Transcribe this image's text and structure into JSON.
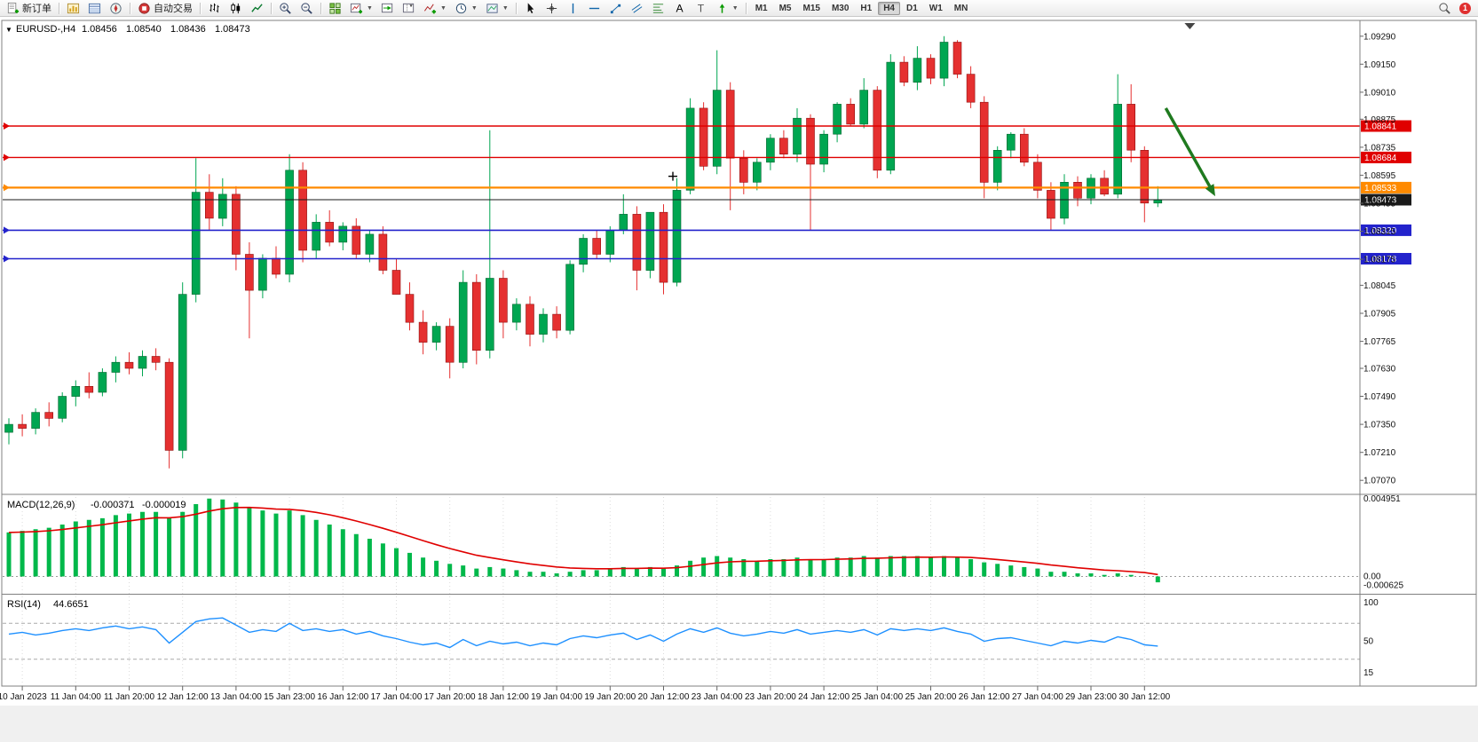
{
  "colors": {
    "up": "#00a651",
    "up_border": "#00662e",
    "down": "#e53030",
    "down_border": "#8f1010",
    "macd_hist": "#00b84a",
    "macd_signal": "#e00000",
    "rsi_line": "#1e90ff",
    "line_red": "#e00000",
    "line_orange": "#ff8a00",
    "line_blue": "#2323cc",
    "line_black": "#1a1a1a",
    "arrow": "#1f7a1f",
    "axis_text": "#111111",
    "frame": "#808080"
  },
  "toolbar": {
    "groups": [
      {
        "items": [
          {
            "name": "new-order-button",
            "icon": "new-order-icon",
            "label": "新订单"
          }
        ]
      },
      {
        "items": [
          {
            "name": "market-watch-button",
            "icon": "market-watch-icon"
          },
          {
            "name": "data-window-button",
            "icon": "data-window-icon"
          },
          {
            "name": "navigator-button",
            "icon": "navigator-icon"
          }
        ]
      },
      {
        "items": [
          {
            "name": "autotrade-button",
            "icon": "autotrade-icon",
            "label": "自动交易"
          }
        ]
      },
      {
        "items": [
          {
            "name": "bars-chart-button",
            "icon": "bars-chart-icon"
          },
          {
            "name": "candles-chart-button",
            "icon": "candles-chart-icon"
          },
          {
            "name": "line-chart-button",
            "icon": "line-chart-icon"
          }
        ]
      },
      {
        "items": [
          {
            "name": "zoom-in-button",
            "icon": "zoom-in-icon"
          },
          {
            "name": "zoom-out-button",
            "icon": "zoom-out-icon"
          }
        ]
      },
      {
        "items": [
          {
            "name": "tile-windows-button",
            "icon": "tile-windows-icon"
          },
          {
            "name": "new-chart-button",
            "icon": "new-chart-icon",
            "caret": true
          },
          {
            "name": "auto-scroll-button",
            "icon": "auto-scroll-icon"
          },
          {
            "name": "chart-shift-button",
            "icon": "chart-shift-icon"
          },
          {
            "name": "indicators-button",
            "icon": "indicators-icon",
            "caret": true
          },
          {
            "name": "periods-button",
            "icon": "periods-icon",
            "caret": true
          },
          {
            "name": "templates-button",
            "icon": "templates-icon",
            "caret": true
          }
        ]
      },
      {
        "items": [
          {
            "name": "cursor-button",
            "icon": "cursor-icon"
          },
          {
            "name": "crosshair-button",
            "icon": "crosshair-icon"
          },
          {
            "name": "vertical-line-button",
            "icon": "vertical-line-icon"
          },
          {
            "name": "horizontal-line-button",
            "icon": "horizontal-line-icon"
          },
          {
            "name": "trendline-button",
            "icon": "trendline-icon"
          },
          {
            "name": "channel-button",
            "icon": "channel-icon"
          },
          {
            "name": "fibonacci-button",
            "icon": "fibonacci-icon"
          },
          {
            "name": "text-button",
            "icon": "text-icon"
          },
          {
            "name": "text-label-button",
            "icon": "text-label-icon"
          },
          {
            "name": "arrows-button",
            "icon": "arrows-icon",
            "caret": true
          }
        ]
      },
      {
        "items": [
          {
            "name": "timeframe-m1",
            "label": "M1"
          },
          {
            "name": "timeframe-m5",
            "label": "M5"
          },
          {
            "name": "timeframe-m15",
            "label": "M15"
          },
          {
            "name": "timeframe-m30",
            "label": "M30"
          },
          {
            "name": "timeframe-h1",
            "label": "H1"
          },
          {
            "name": "timeframe-h4",
            "label": "H4",
            "active": true
          },
          {
            "name": "timeframe-d1",
            "label": "D1"
          },
          {
            "name": "timeframe-w1",
            "label": "W1"
          },
          {
            "name": "timeframe-mn",
            "label": "MN"
          }
        ]
      }
    ],
    "right_badge": "1"
  },
  "chart": {
    "symbol_period": "EURUSD-,H4",
    "ohlc": [
      "1.08456",
      "1.08540",
      "1.08436",
      "1.08473"
    ]
  },
  "chart_data": {
    "type": "candlestick",
    "symbol": "EURUSD",
    "timeframe": "H4",
    "x_labels": [
      "10 Jan 2023",
      "11 Jan 04:00",
      "11 Jan 20:00",
      "12 Jan 12:00",
      "13 Jan 04:00",
      "15 Jan 23:00",
      "16 Jan 12:00",
      "17 Jan 04:00",
      "17 Jan 20:00",
      "18 Jan 12:00",
      "19 Jan 04:00",
      "19 Jan 20:00",
      "20 Jan 12:00",
      "23 Jan 04:00",
      "23 Jan 20:00",
      "24 Jan 12:00",
      "25 Jan 04:00",
      "25 Jan 20:00",
      "26 Jan 12:00",
      "27 Jan 04:00",
      "29 Jan 23:00",
      "30 Jan 12:00"
    ],
    "label_start_index": 1,
    "label_every": 4,
    "price_axis": {
      "min": 1.07,
      "max": 1.0936,
      "tick_labels": [
        "1.09290",
        "1.09150",
        "1.09010",
        "1.08875",
        "1.08735",
        "1.08595",
        "1.08455",
        "1.08315",
        "1.08175",
        "1.08045",
        "1.07905",
        "1.07765",
        "1.07630",
        "1.07490",
        "1.07350",
        "1.07210",
        "1.07070"
      ]
    },
    "candles": [
      [
        1.0731,
        1.0738,
        1.0725,
        1.0735
      ],
      [
        1.0735,
        1.074,
        1.0729,
        1.0733
      ],
      [
        1.0733,
        1.0743,
        1.073,
        1.0741
      ],
      [
        1.0741,
        1.0746,
        1.0734,
        1.0738
      ],
      [
        1.0738,
        1.0751,
        1.0736,
        1.0749
      ],
      [
        1.0749,
        1.0757,
        1.0744,
        1.0754
      ],
      [
        1.0754,
        1.0761,
        1.0748,
        1.0751
      ],
      [
        1.0751,
        1.0763,
        1.0749,
        1.0761
      ],
      [
        1.0761,
        1.0769,
        1.0756,
        1.0766
      ],
      [
        1.0766,
        1.0771,
        1.076,
        1.0763
      ],
      [
        1.0763,
        1.0772,
        1.0759,
        1.0769
      ],
      [
        1.0769,
        1.0773,
        1.0762,
        1.0766
      ],
      [
        1.0766,
        1.0768,
        1.0713,
        1.0722
      ],
      [
        1.0722,
        1.0806,
        1.0718,
        1.08
      ],
      [
        1.08,
        1.0868,
        1.0796,
        1.0851
      ],
      [
        1.0851,
        1.086,
        1.0832,
        1.0838
      ],
      [
        1.0838,
        1.0858,
        1.0834,
        1.085
      ],
      [
        1.085,
        1.0854,
        1.0812,
        1.082
      ],
      [
        1.082,
        1.0826,
        1.0778,
        1.0802
      ],
      [
        1.0802,
        1.082,
        1.0798,
        1.0818
      ],
      [
        1.0818,
        1.0824,
        1.0808,
        1.081
      ],
      [
        1.081,
        1.087,
        1.0806,
        1.0862
      ],
      [
        1.0862,
        1.0866,
        1.0816,
        1.0822
      ],
      [
        1.0822,
        1.084,
        1.0818,
        1.0836
      ],
      [
        1.0836,
        1.0842,
        1.0824,
        1.0826
      ],
      [
        1.0826,
        1.0836,
        1.0822,
        1.0834
      ],
      [
        1.0834,
        1.0838,
        1.0818,
        1.082
      ],
      [
        1.082,
        1.0832,
        1.0816,
        1.083
      ],
      [
        1.083,
        1.0834,
        1.081,
        1.0812
      ],
      [
        1.0812,
        1.0818,
        1.08,
        1.08
      ],
      [
        1.08,
        1.0806,
        1.0782,
        1.0786
      ],
      [
        1.0786,
        1.0792,
        1.077,
        1.0776
      ],
      [
        1.0776,
        1.0786,
        1.0772,
        1.0784
      ],
      [
        1.0784,
        1.0788,
        1.0758,
        1.0766
      ],
      [
        1.0766,
        1.0812,
        1.0763,
        1.0806
      ],
      [
        1.0806,
        1.081,
        1.0765,
        1.0772
      ],
      [
        1.0772,
        1.0882,
        1.0768,
        1.0808
      ],
      [
        1.0808,
        1.0812,
        1.0778,
        1.0786
      ],
      [
        1.0786,
        1.0798,
        1.0782,
        1.0795
      ],
      [
        1.0795,
        1.0799,
        1.0774,
        1.078
      ],
      [
        1.078,
        1.0793,
        1.0776,
        1.079
      ],
      [
        1.079,
        1.0794,
        1.0778,
        1.0782
      ],
      [
        1.0782,
        1.0817,
        1.078,
        1.0815
      ],
      [
        1.0815,
        1.083,
        1.0811,
        1.0828
      ],
      [
        1.0828,
        1.0832,
        1.0818,
        1.082
      ],
      [
        1.082,
        1.0834,
        1.0816,
        1.0832
      ],
      [
        1.0832,
        1.085,
        1.083,
        1.084
      ],
      [
        1.084,
        1.0844,
        1.0802,
        1.0812
      ],
      [
        1.0812,
        1.0841,
        1.0808,
        1.0841
      ],
      [
        1.0841,
        1.0845,
        1.08,
        1.0806
      ],
      [
        1.0806,
        1.0858,
        1.0804,
        1.0852
      ],
      [
        1.0852,
        1.0898,
        1.085,
        1.0893
      ],
      [
        1.0893,
        1.0896,
        1.0862,
        1.0864
      ],
      [
        1.0864,
        1.0922,
        1.086,
        1.0902
      ],
      [
        1.0902,
        1.0906,
        1.0842,
        1.0868
      ],
      [
        1.0868,
        1.0872,
        1.085,
        1.0856
      ],
      [
        1.0856,
        1.0868,
        1.0852,
        1.0866
      ],
      [
        1.0866,
        1.088,
        1.0862,
        1.0878
      ],
      [
        1.0878,
        1.0882,
        1.0868,
        1.087
      ],
      [
        1.087,
        1.0893,
        1.0866,
        1.0888
      ],
      [
        1.0888,
        1.089,
        1.0832,
        1.0865
      ],
      [
        1.0865,
        1.0882,
        1.0861,
        1.088
      ],
      [
        1.088,
        1.0896,
        1.0876,
        1.0895
      ],
      [
        1.0895,
        1.0898,
        1.0884,
        1.0885
      ],
      [
        1.0885,
        1.0908,
        1.0883,
        1.0902
      ],
      [
        1.0902,
        1.0904,
        1.0858,
        1.0862
      ],
      [
        1.0862,
        1.092,
        1.086,
        1.0916
      ],
      [
        1.0916,
        1.0919,
        1.0904,
        1.0906
      ],
      [
        1.0906,
        1.0924,
        1.0902,
        1.0918
      ],
      [
        1.0918,
        1.092,
        1.0905,
        1.0908
      ],
      [
        1.0908,
        1.0929,
        1.0904,
        1.0926
      ],
      [
        1.0926,
        1.0927,
        1.0908,
        1.091
      ],
      [
        1.091,
        1.0914,
        1.0893,
        1.0896
      ],
      [
        1.0896,
        1.0899,
        1.0848,
        1.0856
      ],
      [
        1.0856,
        1.0874,
        1.0852,
        1.0872
      ],
      [
        1.0872,
        1.0881,
        1.0868,
        1.088
      ],
      [
        1.088,
        1.0883,
        1.0864,
        1.0866
      ],
      [
        1.0866,
        1.087,
        1.0848,
        1.0852
      ],
      [
        1.0852,
        1.0856,
        1.0832,
        1.0838
      ],
      [
        1.0838,
        1.086,
        1.0835,
        1.0856
      ],
      [
        1.0856,
        1.0859,
        1.0844,
        1.0848
      ],
      [
        1.0848,
        1.086,
        1.0845,
        1.0858
      ],
      [
        1.0858,
        1.0862,
        1.0849,
        1.085
      ],
      [
        1.085,
        1.091,
        1.0848,
        1.0895
      ],
      [
        1.0895,
        1.0905,
        1.0866,
        1.0872
      ],
      [
        1.0872,
        1.0874,
        1.0836,
        1.08456
      ],
      [
        1.08456,
        1.0854,
        1.08436,
        1.08473
      ]
    ],
    "hlines": [
      {
        "price": 1.08841,
        "label": "1.08841",
        "color_key": "line_red",
        "width": 1.4
      },
      {
        "price": 1.08684,
        "label": "1.08684",
        "color_key": "line_red",
        "width": 1.4
      },
      {
        "price": 1.08533,
        "label": "1.08533",
        "color_key": "line_orange",
        "width": 2.2
      },
      {
        "price": 1.08473,
        "label": "1.08473",
        "color_key": "line_black",
        "width": 1,
        "current": true
      },
      {
        "price": 1.0832,
        "label": "1.08320",
        "color_key": "line_blue",
        "width": 1.6
      },
      {
        "price": 1.08178,
        "label": "1.08178",
        "color_key": "line_blue",
        "width": 1.6
      }
    ],
    "arrow": {
      "from_index": 86.6,
      "from_price": 1.0893,
      "to_index": 90.3,
      "to_price": 1.0849
    },
    "cross_marker": {
      "index": 49.7,
      "price": 1.0859
    },
    "shift_marker_index": 88.4,
    "macd": {
      "label": "MACD(12,26,9)",
      "value_main": "-0.000371",
      "value_signal": "-0.000019",
      "range": [
        -0.0011,
        0.00505
      ],
      "axis_labels": [
        "0.004951",
        "0.00",
        "-0.000625"
      ],
      "histogram": [
        0.0028,
        0.0029,
        0.003,
        0.0031,
        0.0033,
        0.0035,
        0.0036,
        0.0037,
        0.0039,
        0.004,
        0.0041,
        0.0041,
        0.0037,
        0.0041,
        0.0046,
        0.00495,
        0.0049,
        0.0047,
        0.0044,
        0.0042,
        0.004,
        0.0042,
        0.0039,
        0.0036,
        0.0033,
        0.003,
        0.0027,
        0.0024,
        0.0021,
        0.0018,
        0.0015,
        0.0012,
        0.001,
        0.0008,
        0.0007,
        0.0005,
        0.0006,
        0.0005,
        0.0004,
        0.0003,
        0.0003,
        0.0002,
        0.0003,
        0.0004,
        0.0004,
        0.0005,
        0.0006,
        0.0005,
        0.0006,
        0.0005,
        0.0007,
        0.001,
        0.0012,
        0.0013,
        0.0012,
        0.0011,
        0.001,
        0.0011,
        0.0011,
        0.0012,
        0.0011,
        0.0011,
        0.0012,
        0.0012,
        0.0013,
        0.0012,
        0.0013,
        0.0013,
        0.0013,
        0.0012,
        0.0013,
        0.0012,
        0.0011,
        0.0009,
        0.0008,
        0.0007,
        0.0006,
        0.0005,
        0.0003,
        0.0003,
        0.0002,
        0.0002,
        0.0001,
        0.0002,
        0.0001,
        0.0,
        -0.000371
      ]
    },
    "rsi": {
      "label": "RSI(14)",
      "value": "44.6651",
      "axis_labels": [
        "100",
        "50",
        "15"
      ],
      "levels": [
        70,
        30
      ],
      "values": [
        58,
        60,
        57,
        59,
        62,
        64,
        62,
        65,
        67,
        64,
        66,
        63,
        48,
        60,
        72,
        75,
        76,
        68,
        60,
        63,
        61,
        70,
        62,
        64,
        61,
        63,
        58,
        61,
        56,
        53,
        49,
        46,
        48,
        43,
        52,
        45,
        50,
        47,
        49,
        45,
        48,
        46,
        53,
        56,
        54,
        57,
        59,
        52,
        57,
        50,
        58,
        64,
        60,
        65,
        59,
        56,
        58,
        61,
        59,
        63,
        58,
        60,
        62,
        60,
        63,
        57,
        64,
        62,
        64,
        62,
        65,
        61,
        58,
        50,
        53,
        54,
        51,
        48,
        45,
        50,
        48,
        51,
        49,
        55,
        52,
        46,
        44.6651
      ]
    }
  }
}
